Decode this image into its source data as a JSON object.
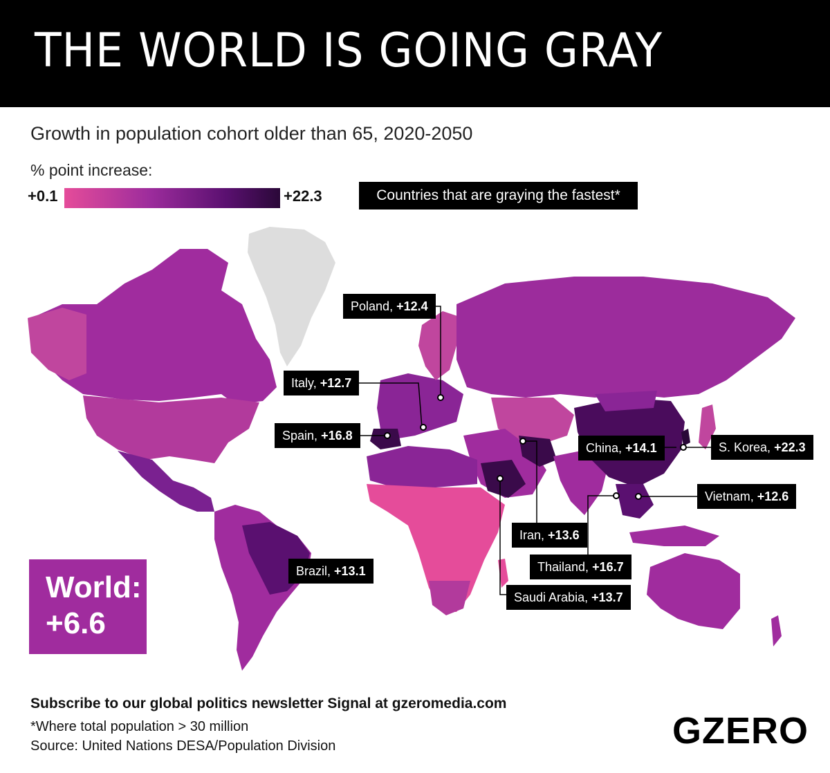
{
  "header": {
    "title": "THE WORLD IS GOING GRAY"
  },
  "subtitle": "Growth in population cohort older than 65, 2020-2050",
  "legend": {
    "label": "% point increase:",
    "min": "+0.1",
    "max": "+22.3",
    "colors": [
      "#e54c9a",
      "#9c2c9c",
      "#5a1070",
      "#2a0838"
    ]
  },
  "fastest_note": "Countries that are graying the fastest*",
  "callouts": [
    {
      "country": "Poland",
      "value": "+12.4"
    },
    {
      "country": "Italy",
      "value": "+12.7"
    },
    {
      "country": "Spain",
      "value": "+16.8"
    },
    {
      "country": "China",
      "value": "+14.1"
    },
    {
      "country": "S. Korea",
      "value": "+22.3"
    },
    {
      "country": "Vietnam",
      "value": "+12.6"
    },
    {
      "country": "Iran",
      "value": "+13.6"
    },
    {
      "country": "Thailand",
      "value": "+16.7"
    },
    {
      "country": "Brazil",
      "value": "+13.1"
    },
    {
      "country": "Saudi Arabia",
      "value": "+13.7"
    }
  ],
  "world": {
    "label": "World:",
    "value": "+6.6"
  },
  "footer": {
    "subscribe": "Subscribe to our global politics newsletter Signal at gzeromedia.com",
    "note": "*Where total population > 30 million",
    "source": "Source: United Nations DESA/Population Division",
    "logo": "GZERO"
  }
}
